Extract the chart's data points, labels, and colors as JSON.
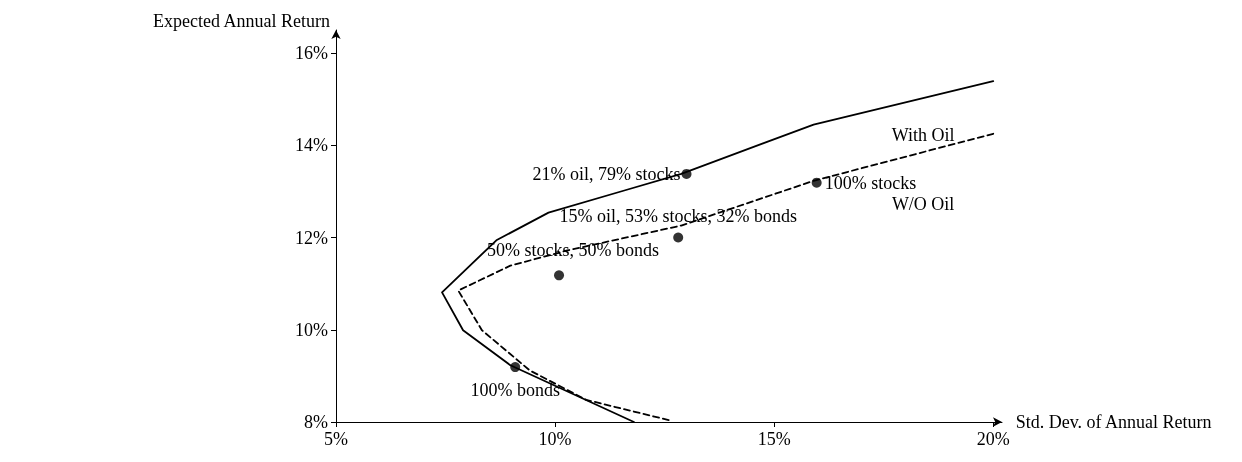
{
  "chart_data": {
    "type": "line",
    "xlabel": "Std. Dev. of Annual Return",
    "ylabel": "Expected Annual Return",
    "xlim": [
      5,
      20.2
    ],
    "ylim": [
      8,
      16.5
    ],
    "xticks": [
      {
        "value": 5,
        "label": "5%"
      },
      {
        "value": 10,
        "label": "10%"
      },
      {
        "value": 15,
        "label": "15%"
      },
      {
        "value": 20,
        "label": "20%"
      }
    ],
    "yticks": [
      {
        "value": 8,
        "label": "8%"
      },
      {
        "value": 10,
        "label": "10%"
      },
      {
        "value": 12,
        "label": "12%"
      },
      {
        "value": 14,
        "label": "14%"
      },
      {
        "value": 16,
        "label": "16%"
      }
    ],
    "grid": false,
    "series": [
      {
        "color": "#000000",
        "line_style": "solid",
        "marker": "none",
        "x": [
          20,
          15.9,
          12.88,
          11.58,
          9.85,
          8.66,
          7.42,
          7.9,
          8.98,
          11.8
        ],
        "values": [
          15.39,
          14.45,
          13.38,
          13.02,
          12.54,
          11.94,
          10.81,
          9.99,
          9.23,
          8.0
        ]
      },
      {
        "color": "#000000",
        "line_style": "dashed",
        "marker": "none",
        "x": [
          20,
          15.9,
          12.88,
          10.28,
          8.98,
          7.79,
          8.33,
          9.42,
          10.71,
          12.6
        ],
        "values": [
          14.25,
          13.23,
          12.26,
          11.72,
          11.39,
          10.85,
          9.99,
          9.12,
          8.48,
          8.04
        ]
      },
      {
        "type": "scatter",
        "color": "#000000",
        "marker": "circle",
        "x": [
          13.0,
          15.97,
          12.81,
          10.09,
          9.09
        ],
        "values": [
          13.38,
          13.19,
          12.0,
          11.18,
          9.19
        ]
      }
    ],
    "annotations": [
      {
        "text": "21% oil, 79% stocks",
        "x": 13.0,
        "y": 13.38
      },
      {
        "text": "100% stocks",
        "x": 15.97,
        "y": 13.19
      },
      {
        "text": "15% oil, 53% stocks, 32% bonds",
        "x": 12.81,
        "y": 12.0
      },
      {
        "text": "50% stocks, 50% bonds",
        "x": 10.09,
        "y": 11.18
      },
      {
        "text": "100% bonds",
        "x": 9.09,
        "y": 9.19
      },
      {
        "text": "With Oil",
        "x": 18.4,
        "y": 15.02
      },
      {
        "text": "W/O Oil",
        "x": 18.4,
        "y": 13.85
      }
    ]
  }
}
